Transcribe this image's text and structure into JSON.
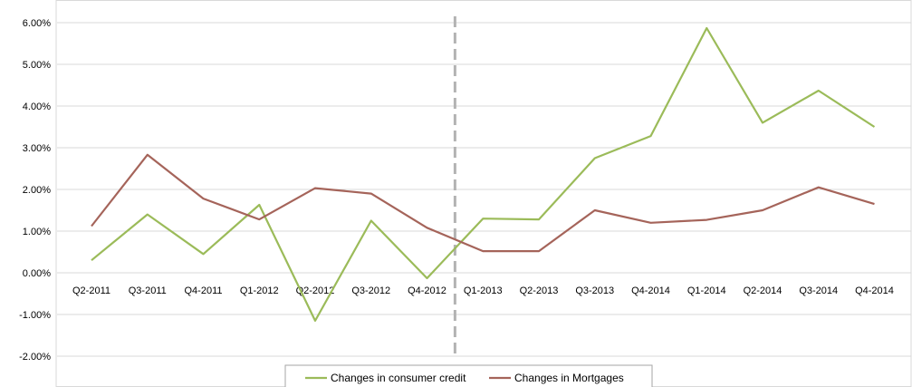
{
  "chart_data": {
    "type": "line",
    "title": "",
    "xlabel": "",
    "ylabel": "",
    "categories": [
      "Q2-2011",
      "Q3-2011",
      "Q4-2011",
      "Q1-2012",
      "Q2-2012",
      "Q3-2012",
      "Q4-2012",
      "Q1-2013",
      "Q2-2013",
      "Q3-2013",
      "Q4-2014",
      "Q1-2014",
      "Q2-2014",
      "Q3-2014",
      "Q4-2014"
    ],
    "ylim": [
      -2.0,
      6.0
    ],
    "yticks": [
      6.0,
      5.0,
      4.0,
      3.0,
      2.0,
      1.0,
      0.0,
      -1.0,
      -2.0
    ],
    "ytick_labels": [
      "6.00%",
      "5.00%",
      "4.00%",
      "3.00%",
      "2.00%",
      "1.00%",
      "0.00%",
      "-1.00%",
      "-2.00%"
    ],
    "grid": "horizontal",
    "vertical_marker": {
      "between": [
        "Q4-2012",
        "Q1-2013"
      ],
      "style": "dashed",
      "color": "#b3b3b3"
    },
    "legend_placement": "bottom-center",
    "series": [
      {
        "name": "Changes in consumer credit",
        "color": "#9bbb59",
        "values": [
          0.3,
          1.4,
          0.45,
          1.63,
          -1.15,
          1.25,
          -0.13,
          1.3,
          1.28,
          2.75,
          3.28,
          5.87,
          3.6,
          4.37,
          3.5
        ]
      },
      {
        "name": "Changes in Mortgages",
        "color": "#a5645a",
        "values": [
          1.12,
          2.83,
          1.78,
          1.28,
          2.03,
          1.9,
          1.08,
          0.52,
          0.52,
          1.5,
          1.2,
          1.27,
          1.5,
          2.05,
          1.65
        ]
      }
    ]
  }
}
